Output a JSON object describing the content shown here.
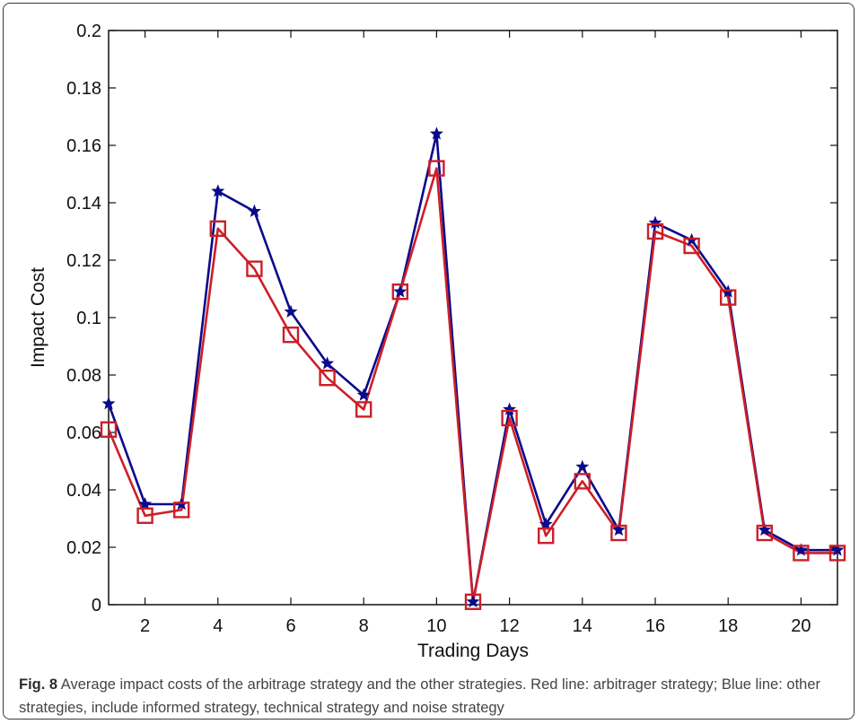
{
  "chart_data": {
    "type": "line",
    "xlabel": "Trading Days",
    "ylabel": "Impact Cost",
    "xlim": [
      1,
      21
    ],
    "ylim": [
      0,
      0.2
    ],
    "x_ticks": [
      2,
      4,
      6,
      8,
      10,
      12,
      14,
      16,
      18,
      20
    ],
    "y_ticks": [
      0,
      0.02,
      0.04,
      0.06,
      0.08,
      0.1,
      0.12,
      0.14,
      0.16,
      0.18,
      0.2
    ],
    "y_tick_labels": [
      "0",
      "0.02",
      "0.04",
      "0.06",
      "0.08",
      "0.1",
      "0.12",
      "0.14",
      "0.16",
      "0.18",
      "0.2"
    ],
    "x": [
      1,
      2,
      3,
      4,
      5,
      6,
      7,
      8,
      9,
      10,
      11,
      12,
      13,
      14,
      15,
      16,
      17,
      18,
      19,
      20,
      21
    ],
    "series": [
      {
        "color": "#0a0a8c",
        "marker": "star",
        "values": [
          0.07,
          0.035,
          0.035,
          0.144,
          0.137,
          0.102,
          0.084,
          0.073,
          0.109,
          0.164,
          0.001,
          0.068,
          0.028,
          0.048,
          0.026,
          0.133,
          0.127,
          0.109,
          0.026,
          0.019,
          0.019
        ]
      },
      {
        "color": "#cc1f28",
        "marker": "square",
        "values": [
          0.061,
          0.031,
          0.033,
          0.131,
          0.117,
          0.094,
          0.079,
          0.068,
          0.109,
          0.152,
          0.001,
          0.065,
          0.024,
          0.043,
          0.025,
          0.13,
          0.125,
          0.107,
          0.025,
          0.018,
          0.018
        ]
      }
    ],
    "grid": false,
    "legend": "none"
  },
  "caption": {
    "label": "Fig. 8",
    "text": " Average impact costs of the arbitrage strategy and the other strategies. Red line: arbitrager strategy; Blue line: other strategies, include informed strategy, technical strategy and noise strategy"
  },
  "colors": {
    "frame": "#3a3a3a",
    "axes": "#111111",
    "caption_text": "#444444"
  }
}
